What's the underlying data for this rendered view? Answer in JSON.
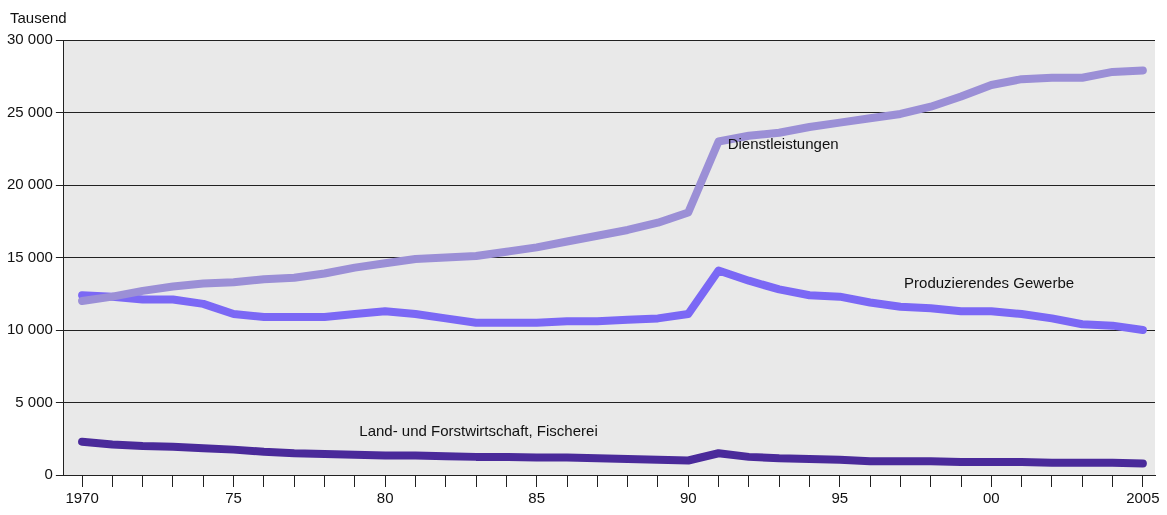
{
  "chart_data": {
    "type": "line",
    "ylabel": "Tausend",
    "x": [
      1970,
      1971,
      1972,
      1973,
      1974,
      1975,
      1976,
      1977,
      1978,
      1979,
      1980,
      1981,
      1982,
      1983,
      1984,
      1985,
      1986,
      1987,
      1988,
      1989,
      1990,
      1991,
      1992,
      1993,
      1994,
      1995,
      1996,
      1997,
      1998,
      1999,
      2000,
      2001,
      2002,
      2003,
      2004,
      2005
    ],
    "series": [
      {
        "name": "Dienstleistungen",
        "color": "#9b8fd6",
        "values": [
          12000,
          12300,
          12700,
          13000,
          13200,
          13300,
          13500,
          13600,
          13900,
          14300,
          14600,
          14900,
          15000,
          15100,
          15400,
          15700,
          16100,
          16500,
          16900,
          17400,
          18100,
          23000,
          23400,
          23600,
          24000,
          24300,
          24600,
          24900,
          25400,
          26100,
          26900,
          27300,
          27400,
          27400,
          27800,
          27900
        ]
      },
      {
        "name": "Produzierendes Gewerbe",
        "color": "#7b68f5",
        "values": [
          12400,
          12300,
          12100,
          12100,
          11800,
          11100,
          10900,
          10900,
          10900,
          11100,
          11300,
          11100,
          10800,
          10500,
          10500,
          10500,
          10600,
          10600,
          10700,
          10800,
          11100,
          14100,
          13400,
          12800,
          12400,
          12300,
          11900,
          11600,
          11500,
          11300,
          11300,
          11100,
          10800,
          10400,
          10300,
          10000
        ]
      },
      {
        "name": "Land- und Forstwirtschaft, Fischerei",
        "color": "#4a2a9a",
        "values": [
          2300,
          2100,
          2000,
          1950,
          1850,
          1750,
          1600,
          1500,
          1450,
          1400,
          1350,
          1350,
          1300,
          1250,
          1250,
          1200,
          1200,
          1150,
          1100,
          1050,
          1000,
          1500,
          1250,
          1150,
          1100,
          1050,
          950,
          950,
          950,
          900,
          900,
          900,
          850,
          850,
          850,
          800
        ]
      }
    ],
    "xlim": [
      1969.4,
      2005.4
    ],
    "xticks": [
      {
        "value": 1970,
        "label": "1970"
      },
      {
        "value": 1971,
        "label": null
      },
      {
        "value": 1972,
        "label": null
      },
      {
        "value": 1973,
        "label": null
      },
      {
        "value": 1974,
        "label": null
      },
      {
        "value": 1975,
        "label": "75"
      },
      {
        "value": 1976,
        "label": null
      },
      {
        "value": 1977,
        "label": null
      },
      {
        "value": 1978,
        "label": null
      },
      {
        "value": 1979,
        "label": null
      },
      {
        "value": 1980,
        "label": "80"
      },
      {
        "value": 1981,
        "label": null
      },
      {
        "value": 1982,
        "label": null
      },
      {
        "value": 1983,
        "label": null
      },
      {
        "value": 1984,
        "label": null
      },
      {
        "value": 1985,
        "label": "85"
      },
      {
        "value": 1986,
        "label": null
      },
      {
        "value": 1987,
        "label": null
      },
      {
        "value": 1988,
        "label": null
      },
      {
        "value": 1989,
        "label": null
      },
      {
        "value": 1990,
        "label": "90"
      },
      {
        "value": 1991,
        "label": null
      },
      {
        "value": 1992,
        "label": null
      },
      {
        "value": 1993,
        "label": null
      },
      {
        "value": 1994,
        "label": null
      },
      {
        "value": 1995,
        "label": "95"
      },
      {
        "value": 1996,
        "label": null
      },
      {
        "value": 1997,
        "label": null
      },
      {
        "value": 1998,
        "label": null
      },
      {
        "value": 1999,
        "label": null
      },
      {
        "value": 2000,
        "label": "00"
      },
      {
        "value": 2001,
        "label": null
      },
      {
        "value": 2002,
        "label": null
      },
      {
        "value": 2003,
        "label": null
      },
      {
        "value": 2004,
        "label": null
      },
      {
        "value": 2005,
        "label": "2005"
      }
    ],
    "ylim": [
      0,
      30000
    ],
    "yticks": [
      {
        "value": 0,
        "label": "0"
      },
      {
        "value": 5000,
        "label": "5 000"
      },
      {
        "value": 10000,
        "label": "10 000"
      },
      {
        "value": 15000,
        "label": "15 000"
      },
      {
        "value": 20000,
        "label": "20 000"
      },
      {
        "value": 25000,
        "label": "25 000"
      },
      {
        "value": 30000,
        "label": "30 000"
      }
    ],
    "grid": "y",
    "legend": false,
    "marker": "none",
    "line_style": "solid"
  }
}
